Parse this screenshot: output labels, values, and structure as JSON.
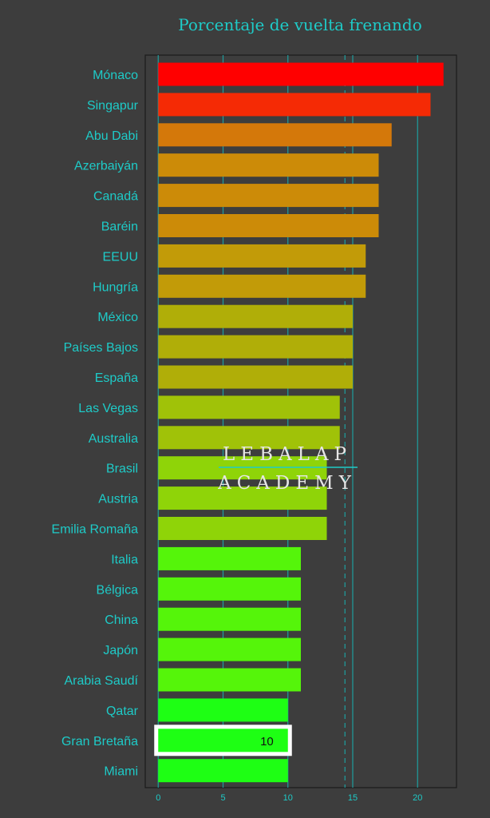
{
  "chart_data": {
    "type": "bar",
    "orientation": "horizontal",
    "title": "Porcentaje de vuelta frenando",
    "xlabel": "",
    "ylabel": "",
    "xlim": [
      -1,
      23
    ],
    "xticks": [
      "0",
      "5",
      "10",
      "15",
      "20"
    ],
    "grid": true,
    "reference_line": 14.4,
    "categories": [
      "Mónaco",
      "Singapur",
      "Abu Dabi",
      "Azerbaiyán",
      "Canadá",
      "Baréin",
      "EEUU",
      "Hungría",
      "México",
      "Países Bajos",
      "España",
      "Las Vegas",
      "Australia",
      "Brasil",
      "Austria",
      "Emilia Romaña",
      "Italia",
      "Bélgica",
      "China",
      "Japón",
      "Arabia Saudí",
      "Qatar",
      "Gran Bretaña",
      "Miami"
    ],
    "values": [
      22,
      21,
      18,
      17,
      17,
      17,
      16,
      16,
      15,
      15,
      15,
      14,
      14,
      13,
      13,
      13,
      11,
      11,
      11,
      11,
      11,
      10,
      10,
      10
    ],
    "colors": [
      "#ff0000",
      "#f52a05",
      "#d4780a",
      "#cc8b08",
      "#cc8b08",
      "#cc8b08",
      "#c29b08",
      "#c29b08",
      "#b0ae08",
      "#b0ae08",
      "#b0ae08",
      "#a0c208",
      "#a0c208",
      "#8fd408",
      "#8fd408",
      "#8fd408",
      "#55f50a",
      "#55f50a",
      "#55f50a",
      "#55f50a",
      "#55f50a",
      "#1eff14",
      "#1eff14",
      "#1eff14"
    ],
    "highlight": {
      "category": "Gran Bretaña",
      "label": "10"
    }
  },
  "watermark": {
    "line1": "LEBALAP",
    "line2": "ACADEMY"
  },
  "colors": {
    "background": "#3d3d3d",
    "text": "#1ecbc8",
    "grid": "#1e9e9e"
  }
}
